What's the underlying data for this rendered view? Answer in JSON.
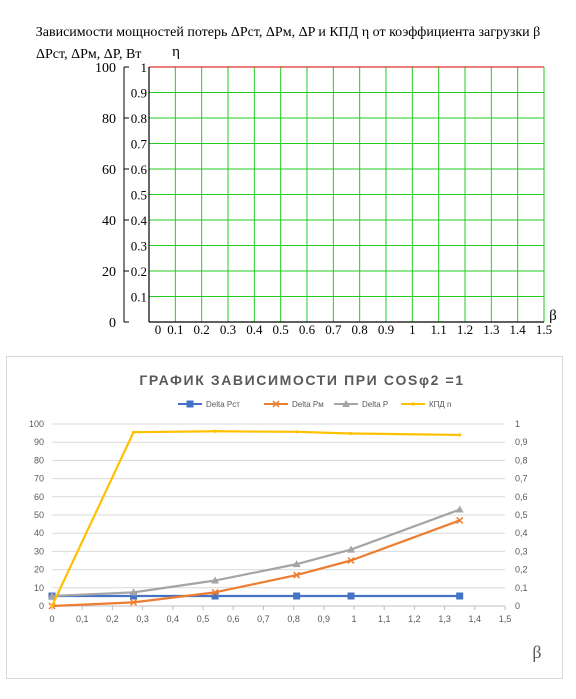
{
  "chart_data": [
    {
      "type": "line",
      "title": "Зависимости мощностей потерь ΔPст, ΔPм, ΔP и КПД η от коэффициента загрузки β",
      "ylabel_left": "ΔPст, ΔPм, ΔP, Вт",
      "ylabel_right": "η",
      "xlabel": "β",
      "x_ticks": [
        "0",
        "0.1",
        "0.2",
        "0.3",
        "0.4",
        "0.5",
        "0.6",
        "0.7",
        "0.8",
        "0.9",
        "1",
        "1.1",
        "1.2",
        "1.3",
        "1.4",
        "1.5"
      ],
      "y_left_ticks": [
        "0",
        "20",
        "40",
        "60",
        "80",
        "100"
      ],
      "y_right_ticks": [
        "0.1",
        "0.2",
        "0.3",
        "0.4",
        "0.5",
        "0.6",
        "0.7",
        "0.8",
        "0.9",
        "1"
      ],
      "xlim": [
        0,
        1.5
      ],
      "ylim_left": [
        0,
        100
      ],
      "ylim_right": [
        0,
        1
      ],
      "grid": true,
      "grid_color": "#22cc22",
      "top_line_color": "#e03030",
      "series": []
    },
    {
      "type": "line",
      "title": "ГРАФИК ЗАВИСИМОСТИ ПРИ COSφ2 =1",
      "xlabel": "β",
      "x_ticks": [
        "0",
        "0,1",
        "0,2",
        "0,3",
        "0,4",
        "0,5",
        "0,6",
        "0,7",
        "0,8",
        "0,9",
        "1",
        "1,1",
        "1,2",
        "1,3",
        "1,4",
        "1,5"
      ],
      "y_left_ticks": [
        "0",
        "10",
        "20",
        "30",
        "40",
        "50",
        "60",
        "70",
        "80",
        "90",
        "100"
      ],
      "y_right_ticks": [
        "0",
        "0,1",
        "0,2",
        "0,3",
        "0,4",
        "0,5",
        "0,6",
        "0,7",
        "0,8",
        "0,9",
        "1"
      ],
      "xlim": [
        0,
        1.5
      ],
      "ylim_left": [
        0,
        100
      ],
      "ylim_right": [
        0,
        1
      ],
      "grid": true,
      "legend_position": "top",
      "x": [
        0,
        0.27,
        0.54,
        0.81,
        0.99,
        1.35
      ],
      "series": [
        {
          "name": "Delta Pст",
          "color": "#4472c4",
          "marker": "square",
          "axis": "left",
          "values": [
            5.5,
            5.5,
            5.5,
            5.5,
            5.5,
            5.5
          ]
        },
        {
          "name": "Delta Pм",
          "color": "#ed7d31",
          "marker": "x",
          "axis": "left",
          "values": [
            0,
            2,
            7.5,
            17,
            25,
            47
          ]
        },
        {
          "name": "Delta P",
          "color": "#a5a5a5",
          "marker": "triangle",
          "axis": "left",
          "values": [
            5.5,
            7.5,
            14,
            23,
            31,
            53
          ]
        },
        {
          "name": "КПД n",
          "color": "#ffc000",
          "marker": "none",
          "axis": "right",
          "values": [
            0,
            0.955,
            0.96,
            0.957,
            0.948,
            0.94
          ]
        }
      ]
    }
  ]
}
